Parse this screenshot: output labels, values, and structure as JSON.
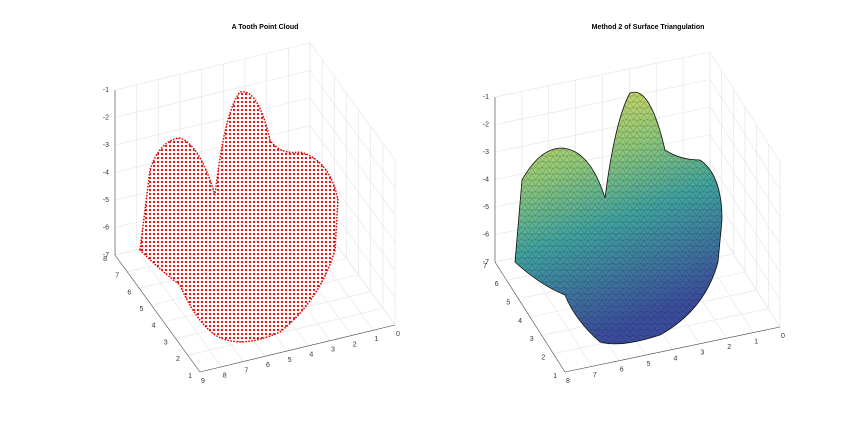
{
  "chart_data": [
    {
      "type": "scatter3d",
      "title": "A Tooth Point Cloud",
      "color": "#ff0000",
      "xlim": [
        0,
        9
      ],
      "ylim": [
        1,
        8
      ],
      "zlim": [
        -7,
        -1
      ],
      "xticks": [
        0,
        1,
        2,
        3,
        4,
        5,
        6,
        7,
        8,
        9
      ],
      "yticks": [
        1,
        2,
        3,
        4,
        5,
        6,
        7,
        8
      ],
      "zticks": [
        -7,
        -6,
        -5,
        -4,
        -3,
        -2,
        -1
      ],
      "grid": true
    },
    {
      "type": "surface",
      "title": "Method 2 of Surface Triangulation",
      "xlim": [
        0,
        8
      ],
      "ylim": [
        1,
        7
      ],
      "zlim": [
        -7,
        -1
      ],
      "xticks": [
        0,
        1,
        2,
        3,
        4,
        5,
        6,
        7,
        8
      ],
      "yticks": [
        1,
        2,
        3,
        4,
        5,
        6,
        7
      ],
      "zticks": [
        -7,
        -6,
        -5,
        -4,
        -3,
        -2,
        -1
      ],
      "grid": true
    }
  ]
}
